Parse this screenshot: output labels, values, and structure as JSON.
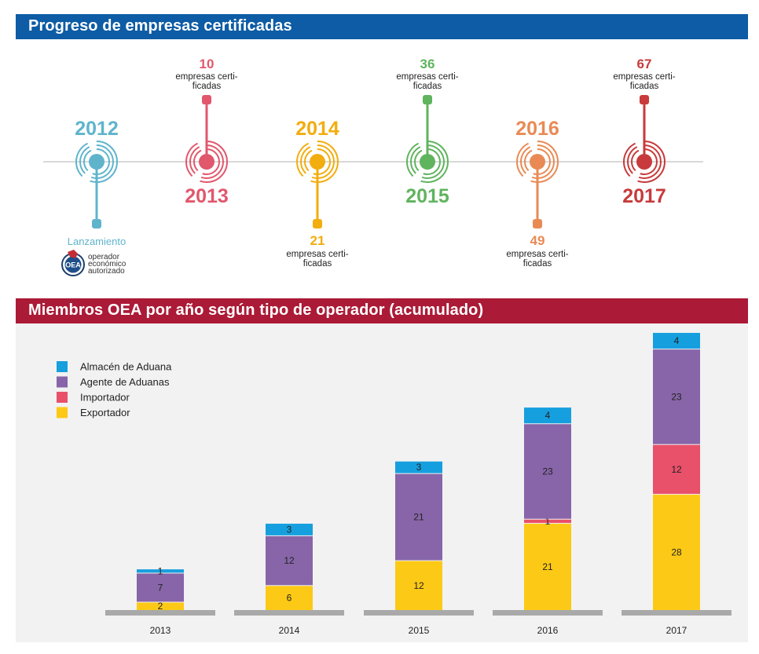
{
  "timeline": {
    "title": "Progreso de empresas certificadas",
    "events": [
      {
        "year": "2012",
        "color": "#5fb4cc",
        "label_pos": "above",
        "stem": "down",
        "count": "",
        "caption": "Lanzamiento"
      },
      {
        "year": "2013",
        "color": "#e1576c",
        "label_pos": "below",
        "stem": "up",
        "count": "10",
        "caption": "empresas certi-|ficadas"
      },
      {
        "year": "2014",
        "color": "#f2ad0e",
        "label_pos": "above",
        "stem": "down",
        "count": "21",
        "caption": "empresas certi-|ficadas"
      },
      {
        "year": "2015",
        "color": "#5fb45e",
        "label_pos": "below",
        "stem": "up",
        "count": "36",
        "caption": "empresas certi-|ficadas"
      },
      {
        "year": "2016",
        "color": "#e98a55",
        "label_pos": "above",
        "stem": "down",
        "count": "49",
        "caption": "empresas certi-|ficadas"
      },
      {
        "year": "2017",
        "color": "#c83a3b",
        "label_pos": "below",
        "stem": "up",
        "count": "67",
        "caption": "empresas certi-|ficadas"
      }
    ],
    "logo": {
      "badge": "OEA",
      "lines": [
        "operador",
        "económico",
        "autorizado"
      ]
    }
  },
  "chart_data": {
    "type": "bar",
    "stacked": true,
    "title": "Miembros OEA por año según tipo de operador (acumulado)",
    "categories": [
      "2013",
      "2014",
      "2015",
      "2016",
      "2017"
    ],
    "series": [
      {
        "name": "Exportador",
        "color": "#fcc916",
        "values": [
          2,
          6,
          12,
          21,
          28
        ]
      },
      {
        "name": "Importador",
        "color": "#e9506a",
        "values": [
          0,
          0,
          0,
          1,
          12
        ]
      },
      {
        "name": "Agente de Aduanas",
        "color": "#8765a8",
        "values": [
          7,
          12,
          21,
          23,
          23
        ]
      },
      {
        "name": "Almacén de Aduana",
        "color": "#169fdf",
        "values": [
          1,
          3,
          3,
          4,
          4
        ]
      }
    ],
    "legend_order": [
      "Almacén de Aduana",
      "Agente de Aduanas",
      "Importador",
      "Exportador"
    ],
    "legend_position": "top-left",
    "grid": false,
    "ylim": [
      0,
      67
    ]
  }
}
